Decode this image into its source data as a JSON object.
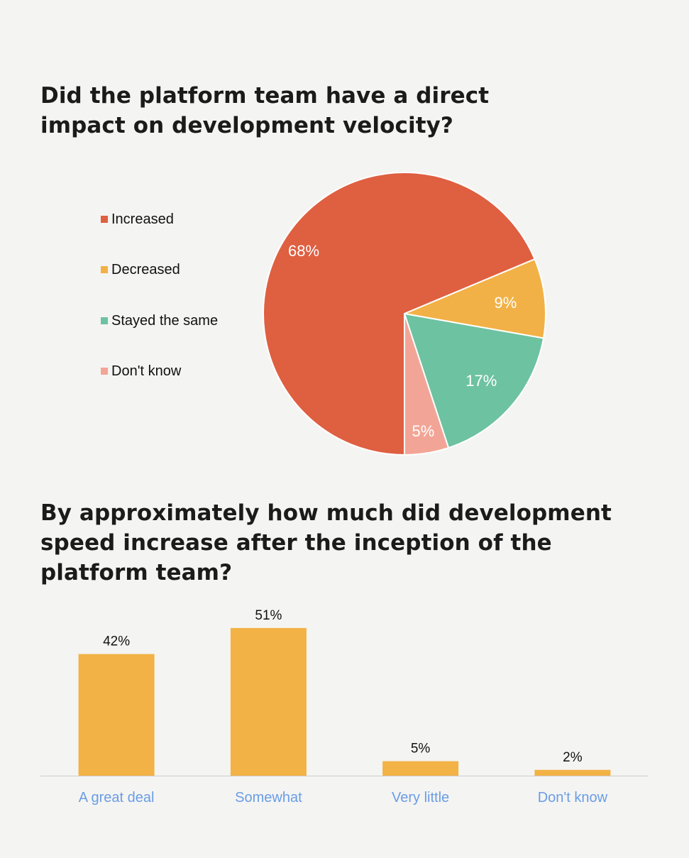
{
  "colors": {
    "background": "#f4f4f2",
    "increased": "#df5f41",
    "decreased": "#f2b146",
    "stayed_same": "#6dc2a1",
    "dont_know_pie": "#f2a596",
    "bar": "#f3b246",
    "axis_label": "#6a9de6",
    "baseline": "#cccccc"
  },
  "chart_data": [
    {
      "type": "pie",
      "title": "Did the platform team have a direct impact on development velocity?",
      "legend_position": "left",
      "slices": [
        {
          "label": "Increased",
          "value": 68,
          "display": "68%",
          "color": "#df5f41"
        },
        {
          "label": "Decreased",
          "value": 9,
          "display": "9%",
          "color": "#f2b146"
        },
        {
          "label": "Stayed the same",
          "value": 17,
          "display": "17%",
          "color": "#6dc2a1"
        },
        {
          "label": "Don't know",
          "value": 5,
          "display": "5%",
          "color": "#f2a596"
        }
      ]
    },
    {
      "type": "bar",
      "title": "By approximately how much did development speed increase after the inception of the platform team?",
      "categories": [
        "A great deal",
        "Somewhat",
        "Very little",
        "Don't know"
      ],
      "values": [
        42,
        51,
        5,
        2
      ],
      "value_labels": [
        "42%",
        "51%",
        "5%",
        "2%"
      ],
      "ylim": [
        0,
        100
      ],
      "grid": false,
      "xlabel": "",
      "ylabel": ""
    }
  ]
}
